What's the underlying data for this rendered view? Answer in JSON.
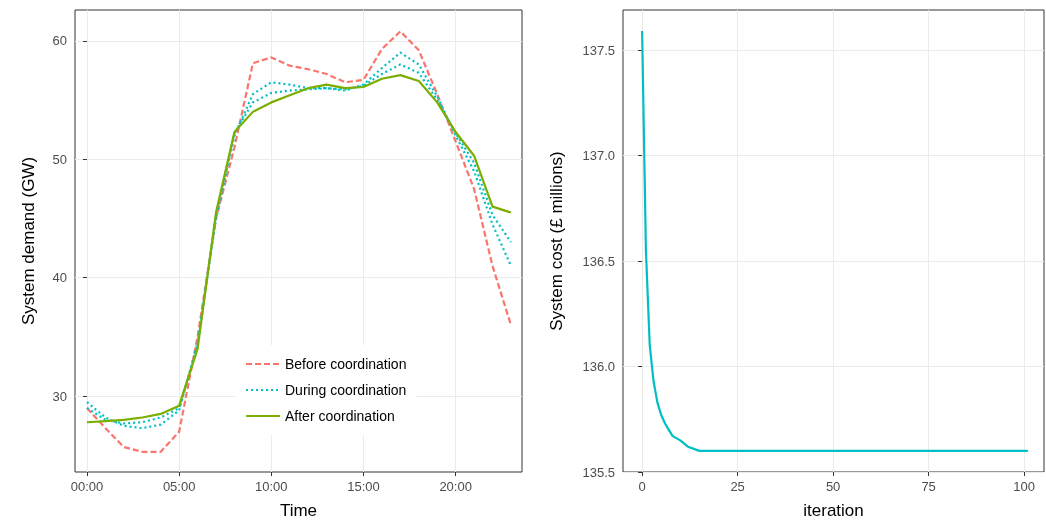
{
  "chart_data": [
    {
      "type": "line",
      "xlabel": "Time",
      "ylabel": "System demand (GW)",
      "x": [
        0,
        1,
        2,
        3,
        4,
        5,
        6,
        7,
        8,
        9,
        10,
        11,
        12,
        13,
        14,
        15,
        16,
        17,
        18,
        19,
        20,
        21,
        22,
        23
      ],
      "xlim": [
        -0.65,
        23.6
      ],
      "xticks": [
        {
          "value": 0,
          "label": "00:00"
        },
        {
          "value": 5,
          "label": "05:00"
        },
        {
          "value": 10,
          "label": "10:00"
        },
        {
          "value": 15,
          "label": "15:00"
        },
        {
          "value": 20,
          "label": "20:00"
        }
      ],
      "ylim": [
        23.6,
        62.6
      ],
      "yticks": [
        30,
        40,
        50,
        60
      ],
      "grid": true,
      "legend": "bottom",
      "marker": "none",
      "series": [
        {
          "name": "Before coordination",
          "color": "#f8766d",
          "line_style": "dashed",
          "values": [
            29,
            27.3,
            25.7,
            25.3,
            25.3,
            27,
            35,
            45,
            51,
            58.1,
            58.6,
            57.9,
            57.6,
            57.2,
            56.5,
            56.7,
            59.3,
            60.8,
            59.2,
            55.5,
            51.5,
            47.5,
            41,
            36
          ]
        },
        {
          "name": "During coordination",
          "color": "#00bfc4",
          "line_style": "dotted",
          "values": [
            29.5,
            28.2,
            27.5,
            27.3,
            27.6,
            28.8,
            34.5,
            45,
            52,
            55.5,
            56.5,
            56.3,
            56,
            56,
            55.8,
            56.3,
            57.7,
            59,
            58,
            55.3,
            52,
            49,
            44.5,
            41
          ]
        },
        {
          "color": "#00bfc4",
          "line_style": "dotted",
          "values": [
            29,
            28,
            27.7,
            27.8,
            28.2,
            29,
            34.3,
            45.3,
            52.2,
            54.8,
            55.6,
            55.8,
            55.9,
            56,
            55.9,
            56.2,
            57.2,
            58,
            57.3,
            55,
            52.2,
            49.7,
            45.3,
            43
          ]
        },
        {
          "name": "After coordination",
          "color": "#7cae00",
          "line_style": "solid",
          "values": [
            27.8,
            27.9,
            28,
            28.2,
            28.5,
            29.2,
            34,
            45.5,
            52.3,
            54,
            54.8,
            55.4,
            56,
            56.3,
            56,
            56.1,
            56.8,
            57.1,
            56.6,
            54.8,
            52.3,
            50.3,
            46,
            45.5
          ]
        }
      ]
    },
    {
      "type": "line",
      "xlabel": "iteration",
      "ylabel": "System cost (£ millions)",
      "x": [
        0,
        1,
        2,
        3,
        4,
        5,
        6,
        7,
        8,
        10,
        12,
        15,
        101
      ],
      "xlim": [
        -5,
        105.2
      ],
      "xticks": [
        0,
        25,
        50,
        75,
        100
      ],
      "ylim": [
        135.5,
        137.69
      ],
      "yticks": [
        {
          "value": 135.5,
          "label": "135.5"
        },
        {
          "value": 136,
          "label": "136.0"
        },
        {
          "value": 136.5,
          "label": "136.5"
        },
        {
          "value": 137,
          "label": "137.0"
        },
        {
          "value": 137.5,
          "label": "137.5"
        }
      ],
      "grid": true,
      "marker": "none",
      "series": [
        {
          "color": "#00bfc4",
          "line_style": "solid",
          "values": [
            137.59,
            136.55,
            136.1,
            135.93,
            135.83,
            135.77,
            135.73,
            135.7,
            135.67,
            135.65,
            135.62,
            135.6,
            135.6
          ]
        }
      ]
    }
  ]
}
